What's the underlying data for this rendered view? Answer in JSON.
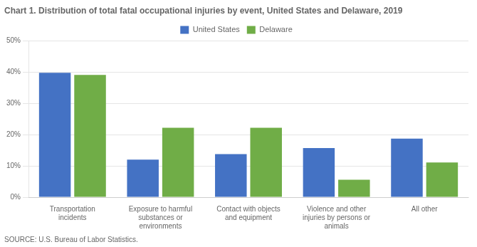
{
  "chart_data": {
    "type": "bar",
    "title": "Chart 1. Distribution of total fatal occupational injuries by event, United States and Delaware, 2019",
    "source": "SOURCE: U.S. Bureau of Labor Statistics.",
    "categories": [
      "Transportation\nincidents",
      "Exposure to harmful\nsubstances or\nenvironments",
      "Contact with objects\nand equipment",
      "Violence and other\ninjuries by persons or\nanimals",
      "All other"
    ],
    "series": [
      {
        "name": "United States",
        "color": "#4472C4",
        "values": [
          39.8,
          12.0,
          13.8,
          15.7,
          18.7
        ]
      },
      {
        "name": "Delaware",
        "color": "#70AD47",
        "values": [
          39.1,
          22.2,
          22.2,
          5.6,
          11.1
        ]
      }
    ],
    "ylim": [
      0,
      50
    ],
    "yticks": [
      {
        "value": 0,
        "label": "0%"
      },
      {
        "value": 10,
        "label": "10%"
      },
      {
        "value": 20,
        "label": "20%"
      },
      {
        "value": 30,
        "label": "30%"
      },
      {
        "value": 40,
        "label": "40%"
      },
      {
        "value": 50,
        "label": "50%"
      }
    ],
    "grid": true,
    "legend": "top"
  }
}
